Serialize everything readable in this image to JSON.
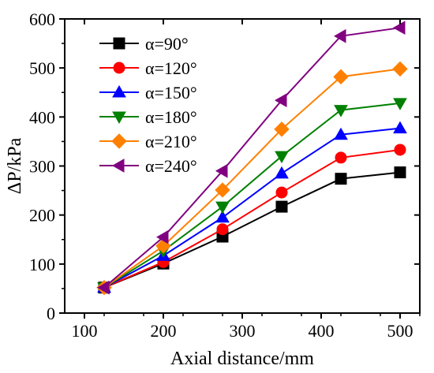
{
  "chart_data": {
    "type": "line",
    "title": "",
    "xlabel": "Axial distance/mm",
    "ylabel": "ΔP/kPa",
    "xlim": [
      75,
      525
    ],
    "ylim": [
      0,
      600
    ],
    "x_ticks": [
      "100",
      "200",
      "300",
      "400",
      "500"
    ],
    "y_ticks": [
      "0",
      "100",
      "200",
      "300",
      "400",
      "500",
      "600"
    ],
    "x": [
      125,
      200,
      275,
      350,
      425,
      500
    ],
    "grid": false,
    "legend_position": "top-left",
    "series": [
      {
        "name": "α=90°",
        "color": "#000000",
        "marker": "square",
        "values": [
          52,
          101,
          156,
          217,
          274,
          287
        ]
      },
      {
        "name": "α=120°",
        "color": "#ff0000",
        "marker": "circle",
        "values": [
          52,
          104,
          171,
          246,
          317,
          333
        ]
      },
      {
        "name": "α=150°",
        "color": "#0000ff",
        "marker": "triangle-up",
        "values": [
          52,
          117,
          195,
          285,
          364,
          377
        ]
      },
      {
        "name": "α=180°",
        "color": "#008000",
        "marker": "triangle-down",
        "values": [
          52,
          127,
          217,
          320,
          414,
          428
        ]
      },
      {
        "name": "α=210°",
        "color": "#ff8000",
        "marker": "diamond",
        "values": [
          52,
          137,
          251,
          375,
          482,
          498
        ]
      },
      {
        "name": "α=240°",
        "color": "#800080",
        "marker": "triangle-left",
        "values": [
          52,
          155,
          290,
          434,
          565,
          582
        ]
      }
    ]
  }
}
